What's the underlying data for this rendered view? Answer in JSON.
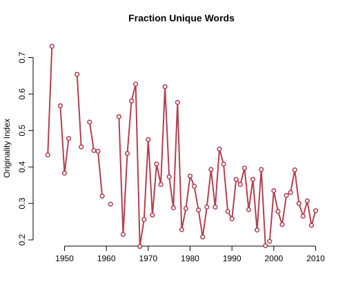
{
  "chart_data": {
    "type": "line",
    "title": "Fraction Unique Words",
    "xlabel": "",
    "ylabel": "Originality Index",
    "xlim": [
      1945,
      2011
    ],
    "ylim": [
      0.18,
      0.74
    ],
    "x_ticks": [
      1950,
      1960,
      1970,
      1980,
      1990,
      2000,
      2010
    ],
    "y_ticks": [
      0.2,
      0.3,
      0.4,
      0.5,
      0.6,
      0.7
    ],
    "grid": false,
    "legend": "none",
    "line_color": "#b04050",
    "marker_stroke": "#b04050",
    "marker_fill": "#ffffff",
    "segments": [
      {
        "x": [
          1946,
          1947
        ],
        "y": [
          0.433,
          0.731
        ]
      },
      {
        "x": [
          1949,
          1950,
          1951
        ],
        "y": [
          0.568,
          0.383,
          0.478
        ]
      },
      {
        "x": [
          1953,
          1954
        ],
        "y": [
          0.654,
          0.455
        ]
      },
      {
        "x": [
          1956,
          1957,
          1958,
          1959
        ],
        "y": [
          0.523,
          0.445,
          0.443,
          0.32
        ]
      },
      {
        "x": [
          1961
        ],
        "y": [
          0.298
        ]
      },
      {
        "x": [
          1963,
          1964,
          1965,
          1966,
          1967,
          1968,
          1969,
          1970,
          1971,
          1972,
          1973,
          1974,
          1975,
          1976,
          1977,
          1978,
          1979,
          1980,
          1981,
          1982,
          1983,
          1984,
          1985,
          1986,
          1987,
          1988,
          1989,
          1990,
          1991,
          1992,
          1993,
          1994,
          1995,
          1996,
          1997,
          1998
        ],
        "y": [
          0.538,
          0.215,
          0.437,
          0.581,
          0.627,
          0.182,
          0.256,
          0.475,
          0.268,
          0.408,
          0.352,
          0.62,
          0.373,
          0.288,
          0.577,
          0.228,
          0.286,
          0.375,
          0.347,
          0.282,
          0.208,
          0.29,
          0.393,
          0.29,
          0.449,
          0.408,
          0.278,
          0.258,
          0.366,
          0.352,
          0.397,
          0.283,
          0.366,
          0.227,
          0.393,
          0.184
        ]
      },
      {
        "x": [
          1999,
          2000,
          2001,
          2002,
          2003,
          2004,
          2005,
          2006,
          2007,
          2008,
          2009,
          2010
        ],
        "y": [
          0.196,
          0.335,
          0.278,
          0.242,
          0.322,
          0.33,
          0.392,
          0.3,
          0.265,
          0.307,
          0.24,
          0.28
        ]
      }
    ]
  }
}
